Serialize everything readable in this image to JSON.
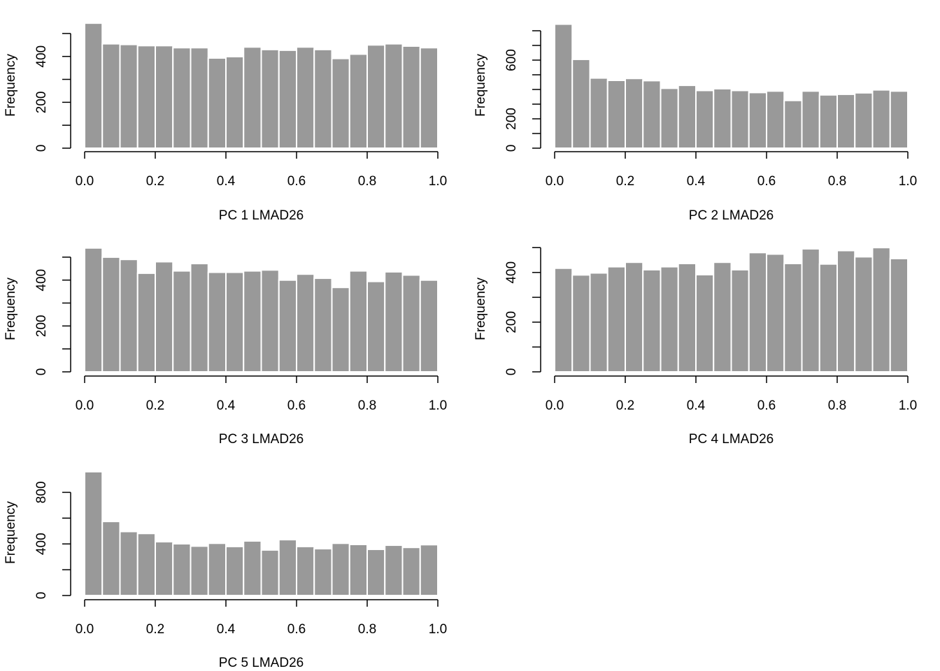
{
  "chart_data": [
    {
      "type": "bar",
      "title": "",
      "xlabel": "PC 1 LMAD26",
      "ylabel": "Frequency",
      "xlim": [
        0,
        1
      ],
      "ylim": [
        0,
        500
      ],
      "x_ticks": [
        "0.0",
        "0.2",
        "0.4",
        "0.6",
        "0.8",
        "1.0"
      ],
      "y_ticks": [
        "0",
        "200",
        "400"
      ],
      "bin_edges": [
        0,
        0.05,
        0.1,
        0.15,
        0.2,
        0.25,
        0.3,
        0.35,
        0.4,
        0.45,
        0.5,
        0.55,
        0.6,
        0.65,
        0.7,
        0.75,
        0.8,
        0.85,
        0.9,
        0.95,
        1.0
      ],
      "values": [
        545,
        455,
        452,
        447,
        447,
        438,
        438,
        393,
        399,
        441,
        430,
        427,
        441,
        430,
        391,
        410,
        450,
        455,
        445,
        438
      ],
      "bar_color": "#999999"
    },
    {
      "type": "bar",
      "title": "",
      "xlabel": "PC 2 LMAD26",
      "ylabel": "Frequency",
      "xlim": [
        0,
        1
      ],
      "ylim": [
        0,
        800
      ],
      "x_ticks": [
        "0.0",
        "0.2",
        "0.4",
        "0.6",
        "0.8",
        "1.0"
      ],
      "y_ticks": [
        "0",
        "200",
        "600"
      ],
      "bin_edges": [
        0,
        0.05,
        0.1,
        0.15,
        0.2,
        0.25,
        0.3,
        0.35,
        0.4,
        0.45,
        0.5,
        0.55,
        0.6,
        0.65,
        0.7,
        0.75,
        0.8,
        0.85,
        0.9,
        0.95,
        1.0
      ],
      "values": [
        845,
        605,
        478,
        462,
        475,
        460,
        408,
        428,
        393,
        405,
        393,
        379,
        389,
        325,
        389,
        363,
        367,
        377,
        397,
        389
      ],
      "bar_color": "#999999"
    },
    {
      "type": "bar",
      "title": "",
      "xlabel": "PC 3 LMAD26",
      "ylabel": "Frequency",
      "xlim": [
        0,
        1
      ],
      "ylim": [
        0,
        500
      ],
      "x_ticks": [
        "0.0",
        "0.2",
        "0.4",
        "0.6",
        "0.8",
        "1.0"
      ],
      "y_ticks": [
        "0",
        "200",
        "400"
      ],
      "bin_edges": [
        0,
        0.05,
        0.1,
        0.15,
        0.2,
        0.25,
        0.3,
        0.35,
        0.4,
        0.45,
        0.5,
        0.55,
        0.6,
        0.65,
        0.7,
        0.75,
        0.8,
        0.85,
        0.9,
        0.95,
        1.0
      ],
      "values": [
        540,
        500,
        490,
        430,
        480,
        440,
        472,
        434,
        434,
        440,
        444,
        400,
        426,
        408,
        368,
        440,
        394,
        436,
        422,
        400
      ],
      "bar_color": "#999999"
    },
    {
      "type": "bar",
      "title": "",
      "xlabel": "PC 4 LMAD26",
      "ylabel": "Frequency",
      "xlim": [
        0,
        1
      ],
      "ylim": [
        0,
        500
      ],
      "x_ticks": [
        "0.0",
        "0.2",
        "0.4",
        "0.6",
        "0.8",
        "1.0"
      ],
      "y_ticks": [
        "0",
        "200",
        "400"
      ],
      "bin_edges": [
        0,
        0.05,
        0.1,
        0.15,
        0.2,
        0.25,
        0.3,
        0.35,
        0.4,
        0.45,
        0.5,
        0.55,
        0.6,
        0.65,
        0.7,
        0.75,
        0.8,
        0.85,
        0.9,
        0.95,
        1.0
      ],
      "values": [
        417,
        390,
        398,
        423,
        441,
        411,
        423,
        436,
        391,
        441,
        411,
        480,
        474,
        436,
        495,
        434,
        488,
        463,
        500,
        456
      ],
      "bar_color": "#999999"
    },
    {
      "type": "bar",
      "title": "",
      "xlabel": "PC 5 LMAD26",
      "ylabel": "Frequency",
      "xlim": [
        0,
        1
      ],
      "ylim": [
        0,
        900
      ],
      "x_ticks": [
        "0.0",
        "0.2",
        "0.4",
        "0.6",
        "0.8",
        "1.0"
      ],
      "y_ticks": [
        "0",
        "400",
        "800"
      ],
      "bin_edges": [
        0,
        0.05,
        0.1,
        0.15,
        0.2,
        0.25,
        0.3,
        0.35,
        0.4,
        0.45,
        0.5,
        0.55,
        0.6,
        0.65,
        0.7,
        0.75,
        0.8,
        0.85,
        0.9,
        0.95,
        1.0
      ],
      "values": [
        960,
        574,
        496,
        481,
        417,
        401,
        383,
        405,
        380,
        423,
        353,
        433,
        380,
        363,
        405,
        396,
        358,
        390,
        373,
        394
      ],
      "bar_color": "#999999"
    }
  ]
}
